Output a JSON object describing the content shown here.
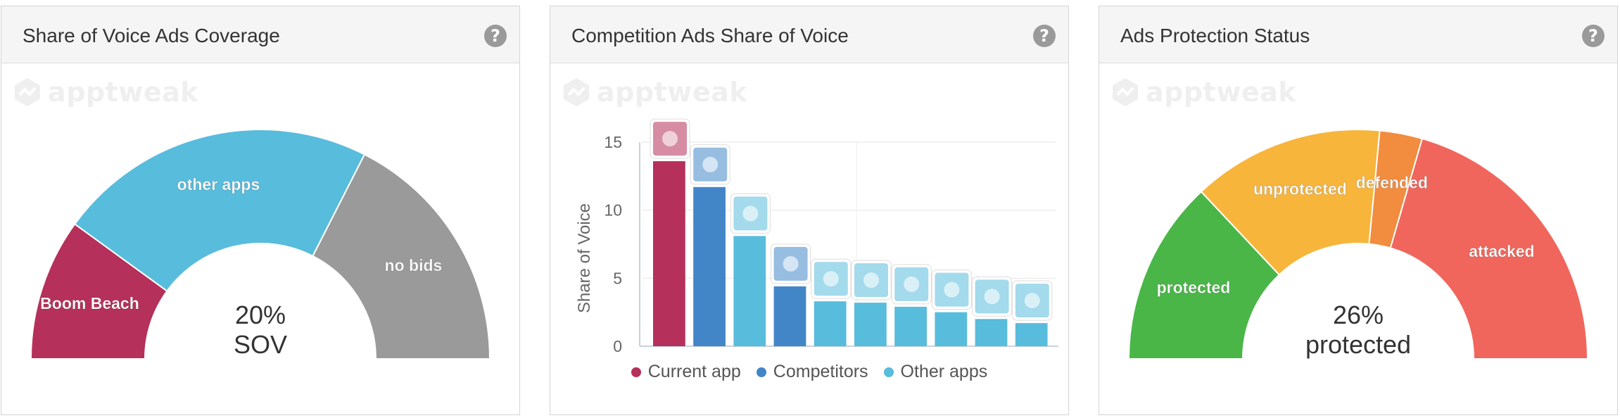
{
  "panels": [
    {
      "title": "Share of Voice Ads Coverage"
    },
    {
      "title": "Competition Ads Share of Voice"
    },
    {
      "title": "Ads Protection Status"
    }
  ],
  "watermark_text": "apptweak",
  "icons": {
    "help": "question-circle-icon",
    "watermark": "apptweak-logo-icon"
  },
  "colors": {
    "current_app": "#b5305a",
    "competitors": "#4286c8",
    "other_apps": "#58bcdc",
    "no_bids": "#9a9a9a",
    "protected": "#4ab648",
    "unprotected": "#f7b53c",
    "defended": "#f28c3e",
    "attacked": "#f0665c"
  },
  "chart_data": [
    {
      "type": "pie",
      "shape": "semi-donut",
      "title": "Share of Voice Ads Coverage",
      "slices": [
        {
          "label": "Boom Beach",
          "value": 20,
          "color": "#b5305a"
        },
        {
          "label": "other apps",
          "value": 45,
          "color": "#58bcdc"
        },
        {
          "label": "no bids",
          "value": 35,
          "color": "#9a9a9a"
        }
      ],
      "center_value": "20%",
      "center_label": "SOV"
    },
    {
      "type": "bar",
      "title": "Competition Ads Share of Voice",
      "xlabel": "",
      "ylabel": "Share of Voice",
      "ylim": [
        0,
        15
      ],
      "yticks": [
        0,
        5,
        10,
        15
      ],
      "grid": true,
      "legend_position": "bottom",
      "legend": [
        {
          "name": "Current app",
          "color": "#b5305a"
        },
        {
          "name": "Competitors",
          "color": "#4286c8"
        },
        {
          "name": "Other apps",
          "color": "#58bcdc"
        }
      ],
      "bars": [
        {
          "value": 13.6,
          "group": "current_app"
        },
        {
          "value": 11.7,
          "group": "competitors"
        },
        {
          "value": 8.1,
          "group": "other_apps"
        },
        {
          "value": 4.4,
          "group": "competitors"
        },
        {
          "value": 3.3,
          "group": "other_apps"
        },
        {
          "value": 3.2,
          "group": "other_apps"
        },
        {
          "value": 2.9,
          "group": "other_apps"
        },
        {
          "value": 2.5,
          "group": "other_apps"
        },
        {
          "value": 2.0,
          "group": "other_apps"
        },
        {
          "value": 1.7,
          "group": "other_apps"
        }
      ]
    },
    {
      "type": "pie",
      "shape": "semi-donut",
      "title": "Ads Protection Status",
      "slices": [
        {
          "label": "protected",
          "value": 26,
          "color": "#4ab648"
        },
        {
          "label": "unprotected",
          "value": 27,
          "color": "#f7b53c"
        },
        {
          "label": "defended",
          "value": 6,
          "color": "#f28c3e"
        },
        {
          "label": "attacked",
          "value": 41,
          "color": "#f0665c"
        }
      ],
      "center_value": "26%",
      "center_label": "protected"
    }
  ]
}
